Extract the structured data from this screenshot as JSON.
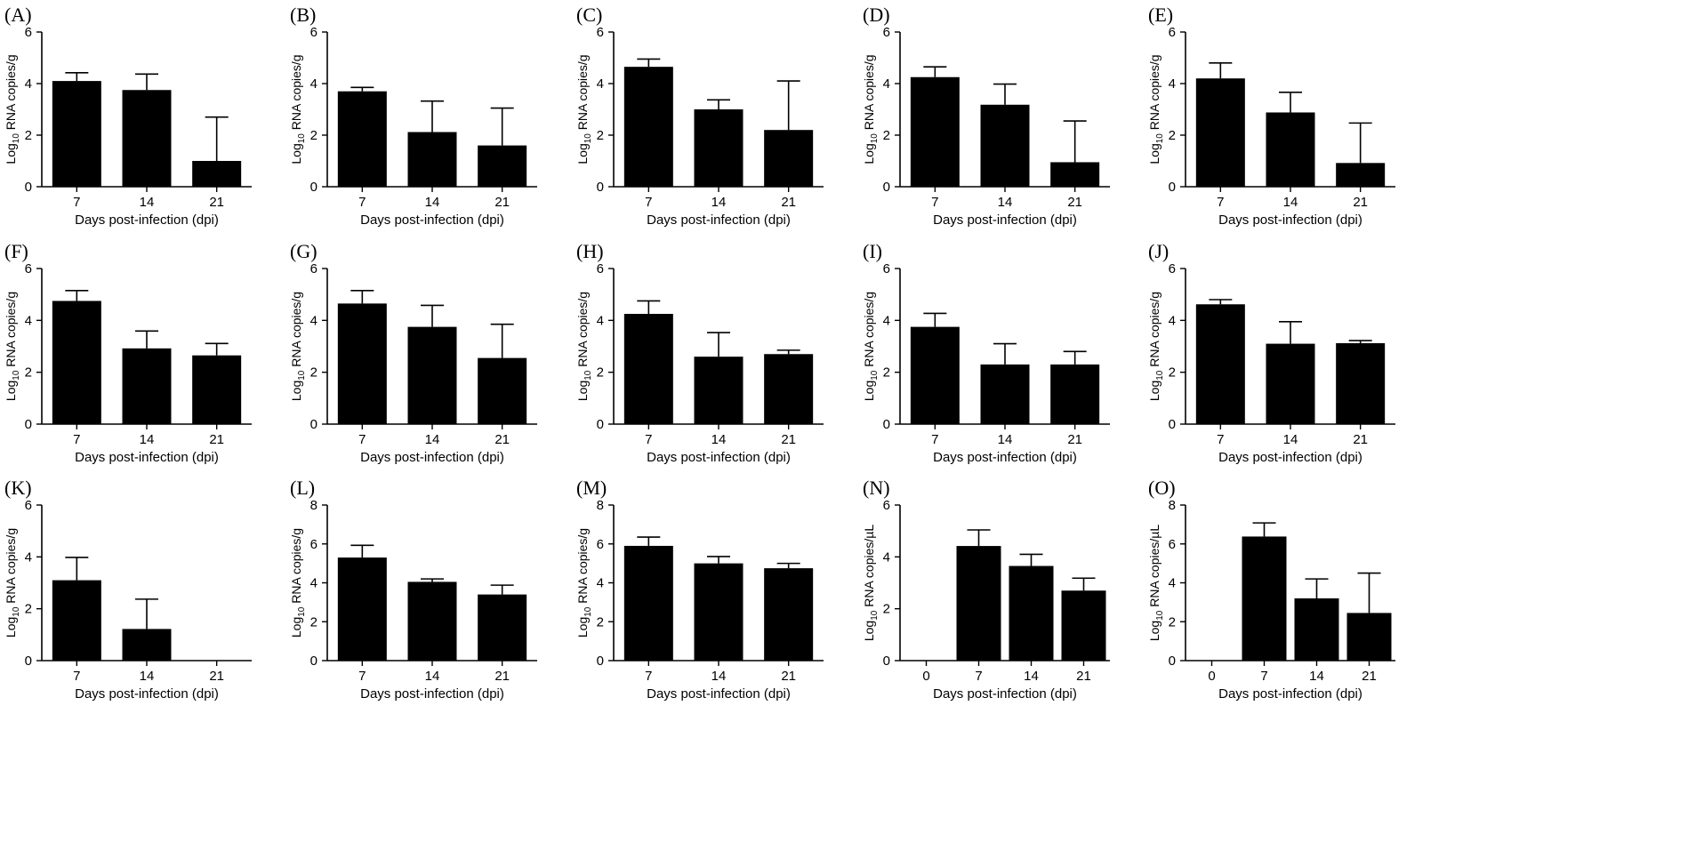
{
  "chart_data": [
    {
      "panel": "(A)",
      "type": "bar",
      "categories": [
        "7",
        "14",
        "21"
      ],
      "values": [
        4.1,
        3.75,
        1.0
      ],
      "errors": [
        0.32,
        0.62,
        1.7
      ],
      "ylim": [
        0,
        6
      ],
      "yticks": [
        0,
        2,
        4,
        6
      ],
      "ylabel_main": "Log",
      "ylabel_sub": "10",
      "ylabel_rest": " RNA copies/g",
      "xlabel": "Days post-infection (dpi)"
    },
    {
      "panel": "(B)",
      "type": "bar",
      "categories": [
        "7",
        "14",
        "21"
      ],
      "values": [
        3.7,
        2.12,
        1.6
      ],
      "errors": [
        0.15,
        1.2,
        1.45
      ],
      "ylim": [
        0,
        6
      ],
      "yticks": [
        0,
        2,
        4,
        6
      ],
      "ylabel_main": "Log",
      "ylabel_sub": "10",
      "ylabel_rest": " RNA copies/g",
      "xlabel": "Days post-infection (dpi)"
    },
    {
      "panel": "(C)",
      "type": "bar",
      "categories": [
        "7",
        "14",
        "21"
      ],
      "values": [
        4.65,
        3.0,
        2.2
      ],
      "errors": [
        0.3,
        0.37,
        1.9
      ],
      "ylim": [
        0,
        6
      ],
      "yticks": [
        0,
        2,
        4,
        6
      ],
      "ylabel_main": "Log",
      "ylabel_sub": "10",
      "ylabel_rest": " RNA copies/g",
      "xlabel": "Days post-infection (dpi)"
    },
    {
      "panel": "(D)",
      "type": "bar",
      "categories": [
        "7",
        "14",
        "21"
      ],
      "values": [
        4.25,
        3.18,
        0.95
      ],
      "errors": [
        0.4,
        0.8,
        1.6
      ],
      "ylim": [
        0,
        6
      ],
      "yticks": [
        0,
        2,
        4,
        6
      ],
      "ylabel_main": "Log",
      "ylabel_sub": "10",
      "ylabel_rest": " RNA copies/g",
      "xlabel": "Days post-infection (dpi)"
    },
    {
      "panel": "(E)",
      "type": "bar",
      "categories": [
        "7",
        "14",
        "21"
      ],
      "values": [
        4.2,
        2.88,
        0.92
      ],
      "errors": [
        0.6,
        0.78,
        1.55
      ],
      "ylim": [
        0,
        6
      ],
      "yticks": [
        0,
        2,
        4,
        6
      ],
      "ylabel_main": "Log",
      "ylabel_sub": "10",
      "ylabel_rest": " RNA copies/g",
      "xlabel": "Days post-infection (dpi)"
    },
    {
      "panel": "(F)",
      "type": "bar",
      "categories": [
        "7",
        "14",
        "21"
      ],
      "values": [
        4.75,
        2.92,
        2.65
      ],
      "errors": [
        0.4,
        0.67,
        0.46
      ],
      "ylim": [
        0,
        6
      ],
      "yticks": [
        0,
        2,
        4,
        6
      ],
      "ylabel_main": "Log",
      "ylabel_sub": "10",
      "ylabel_rest": " RNA copies/g",
      "xlabel": "Days post-infection (dpi)"
    },
    {
      "panel": "(G)",
      "type": "bar",
      "categories": [
        "7",
        "14",
        "21"
      ],
      "values": [
        4.65,
        3.75,
        2.55
      ],
      "errors": [
        0.5,
        0.83,
        1.3
      ],
      "ylim": [
        0,
        6
      ],
      "yticks": [
        0,
        2,
        4,
        6
      ],
      "ylabel_main": "Log",
      "ylabel_sub": "10",
      "ylabel_rest": " RNA copies/g",
      "xlabel": "Days post-infection (dpi)"
    },
    {
      "panel": "(H)",
      "type": "bar",
      "categories": [
        "7",
        "14",
        "21"
      ],
      "values": [
        4.25,
        2.6,
        2.7
      ],
      "errors": [
        0.5,
        0.93,
        0.15
      ],
      "ylim": [
        0,
        6
      ],
      "yticks": [
        0,
        2,
        4,
        6
      ],
      "ylabel_main": "Log",
      "ylabel_sub": "10",
      "ylabel_rest": " RNA copies/g",
      "xlabel": "Days post-infection (dpi)"
    },
    {
      "panel": "(I)",
      "type": "bar",
      "categories": [
        "7",
        "14",
        "21"
      ],
      "values": [
        3.75,
        2.3,
        2.3
      ],
      "errors": [
        0.52,
        0.8,
        0.5
      ],
      "ylim": [
        0,
        6
      ],
      "yticks": [
        0,
        2,
        4,
        6
      ],
      "ylabel_main": "Log",
      "ylabel_sub": "10",
      "ylabel_rest": " RNA copies/g",
      "xlabel": "Days post-infection (dpi)"
    },
    {
      "panel": "(J)",
      "type": "bar",
      "categories": [
        "7",
        "14",
        "21"
      ],
      "values": [
        4.62,
        3.1,
        3.12
      ],
      "errors": [
        0.18,
        0.85,
        0.1
      ],
      "ylim": [
        0,
        6
      ],
      "yticks": [
        0,
        2,
        4,
        6
      ],
      "ylabel_main": "Log",
      "ylabel_sub": "10",
      "ylabel_rest": " RNA copies/g",
      "xlabel": "Days post-infection (dpi)"
    },
    {
      "panel": "(K)",
      "type": "bar",
      "categories": [
        "7",
        "14",
        "21"
      ],
      "values": [
        3.1,
        1.22,
        0
      ],
      "errors": [
        0.88,
        1.15,
        0
      ],
      "ylim": [
        0,
        6
      ],
      "yticks": [
        0,
        2,
        4,
        6
      ],
      "ylabel_main": "Log",
      "ylabel_sub": "10",
      "ylabel_rest": " RNA copies/g",
      "xlabel": "Days post-infection (dpi)"
    },
    {
      "panel": "(L)",
      "type": "bar",
      "categories": [
        "7",
        "14",
        "21"
      ],
      "values": [
        5.3,
        4.05,
        3.4
      ],
      "errors": [
        0.63,
        0.15,
        0.48
      ],
      "ylim": [
        0,
        8
      ],
      "yticks": [
        0,
        2,
        4,
        6,
        8
      ],
      "ylabel_main": "Log",
      "ylabel_sub": "10",
      "ylabel_rest": " RNA copies/g",
      "xlabel": "Days post-infection (dpi)"
    },
    {
      "panel": "(M)",
      "type": "bar",
      "categories": [
        "7",
        "14",
        "21"
      ],
      "values": [
        5.9,
        5.0,
        4.75
      ],
      "errors": [
        0.45,
        0.35,
        0.25
      ],
      "ylim": [
        0,
        8
      ],
      "yticks": [
        0,
        2,
        4,
        6,
        8
      ],
      "ylabel_main": "Log",
      "ylabel_sub": "10",
      "ylabel_rest": " RNA copies/g",
      "xlabel": "Days post-infection (dpi)"
    },
    {
      "panel": "(N)",
      "type": "bar",
      "categories": [
        "0",
        "7",
        "14",
        "21"
      ],
      "values": [
        0,
        4.42,
        3.65,
        2.7
      ],
      "errors": [
        0,
        0.62,
        0.45,
        0.48
      ],
      "ylim": [
        0,
        6
      ],
      "yticks": [
        0,
        2,
        4,
        6
      ],
      "ylabel_main": "Log",
      "ylabel_sub": "10",
      "ylabel_rest": " RNA copies/µL",
      "xlabel": "Days post-infection (dpi)"
    },
    {
      "panel": "(O)",
      "type": "bar",
      "categories": [
        "0",
        "7",
        "14",
        "21"
      ],
      "values": [
        0,
        6.38,
        3.2,
        2.45
      ],
      "errors": [
        0,
        0.7,
        1.0,
        2.05
      ],
      "ylim": [
        0,
        8
      ],
      "yticks": [
        0,
        2,
        4,
        6,
        8
      ],
      "ylabel_main": "Log",
      "ylabel_sub": "10",
      "ylabel_rest": " RNA copies/µL",
      "xlabel": "Days post-infection (dpi)"
    }
  ]
}
